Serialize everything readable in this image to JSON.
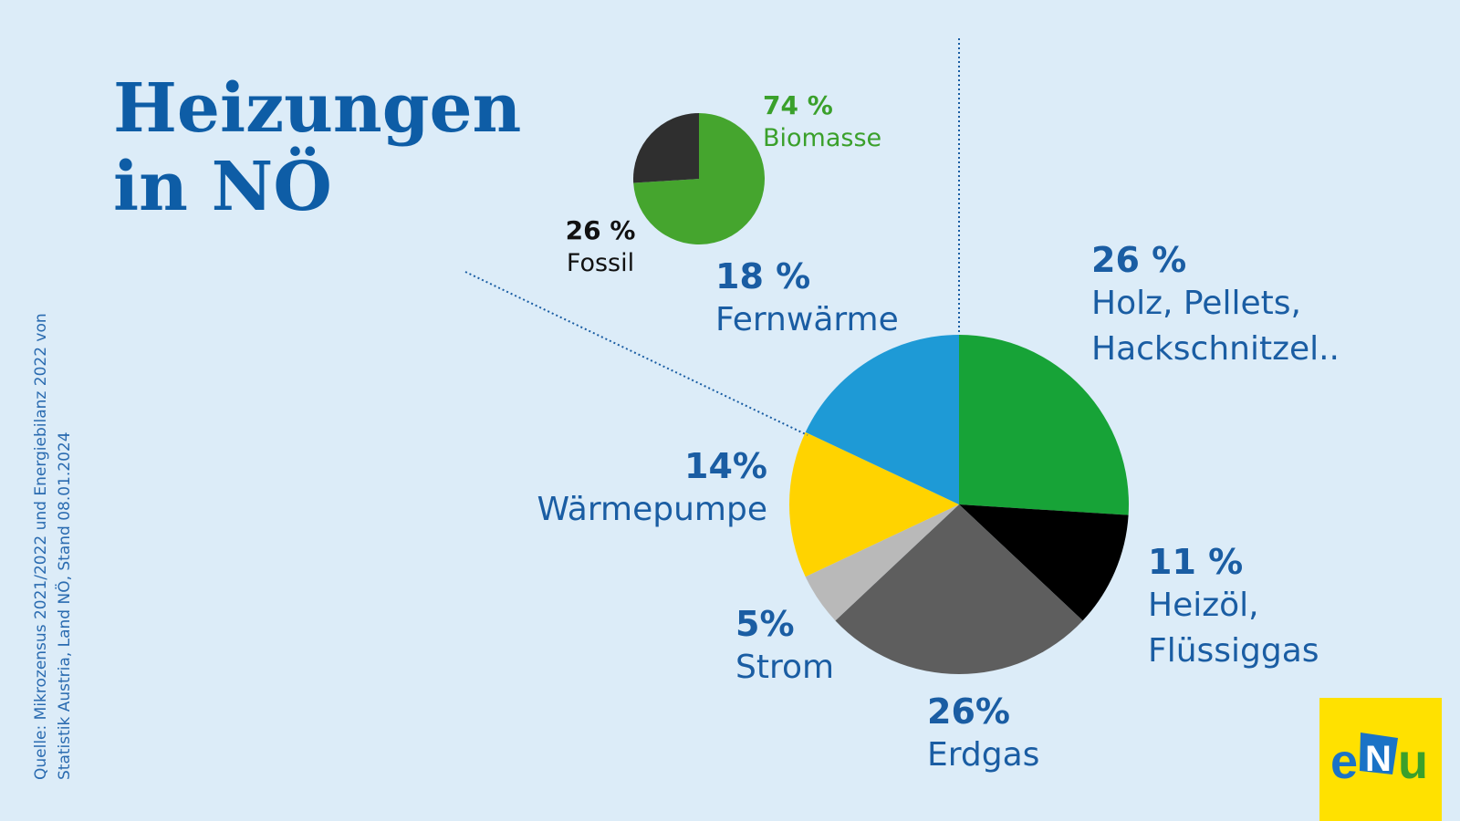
{
  "title": {
    "line1": "Heizungen",
    "line2": "in NÖ"
  },
  "source": {
    "line1": "Quelle: Mikrozensus 2021/2022 und Energiebilanz 2022 von",
    "line2": "Statistik Austria, Land NÖ,  Stand 08.01.2024"
  },
  "logo": {
    "text_e": "e",
    "text_n": "N",
    "text_u": "u"
  },
  "colors": {
    "background": "#dcecf8",
    "label_blue": "#1a5da3",
    "title_blue": "#0e5da6",
    "biomasse_green": "#3aa02b",
    "logo_yellow": "#ffe100"
  },
  "chart_data": [
    {
      "type": "pie",
      "slices": [
        {
          "name": "Holz, Pellets, Hackschnitzel..",
          "value": 26,
          "label": "26 %",
          "color": "#17a337"
        },
        {
          "name": "Heizöl, Flüssiggas",
          "value": 11,
          "label": "11 %",
          "color": "#000000"
        },
        {
          "name": "Erdgas",
          "value": 26,
          "label": "26%",
          "color": "#5e5e5e"
        },
        {
          "name": "Strom",
          "value": 5,
          "label": "5%",
          "color": "#b9b9b9"
        },
        {
          "name": "Wärmepumpe",
          "value": 14,
          "label": "14%",
          "color": "#ffd300"
        },
        {
          "name": "Fernwärme",
          "value": 18,
          "label": "18 %",
          "color": "#1e9ad6"
        }
      ]
    },
    {
      "type": "pie",
      "slices": [
        {
          "name": "Biomasse",
          "value": 74,
          "label": "74 %",
          "color": "#45a52e"
        },
        {
          "name": "Fossil",
          "value": 26,
          "label": "26 %",
          "color": "#2f2f2f"
        }
      ]
    }
  ]
}
